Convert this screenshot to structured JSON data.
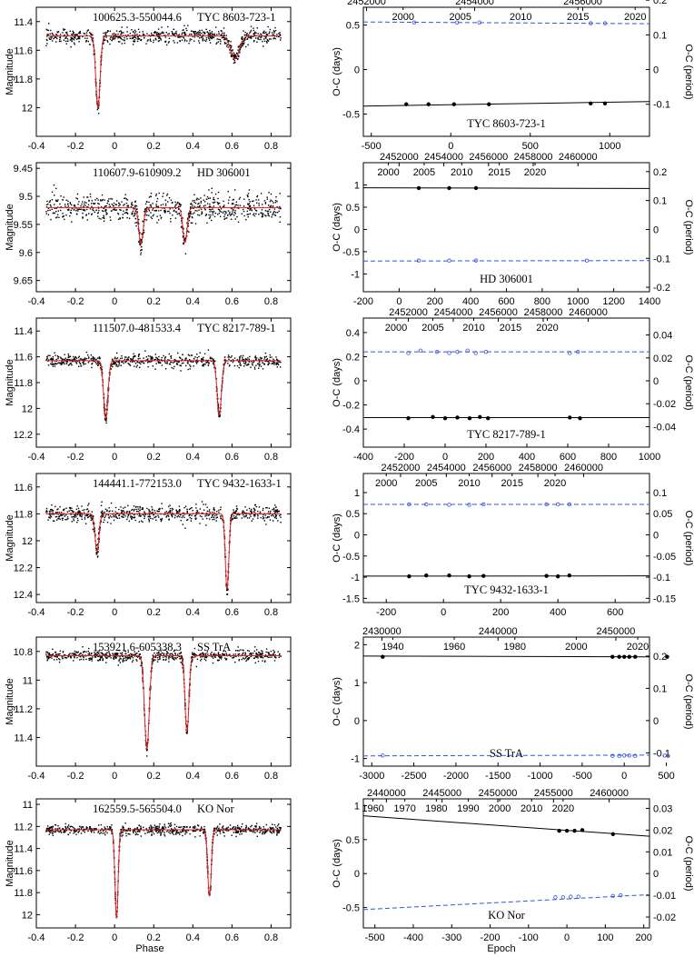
{
  "figure": {
    "left_xlabel": "Phase",
    "right_xlabel": "Epoch",
    "left_ylabel": "Magnitude",
    "right_ylabel_left": "O-C (days)",
    "right_ylabel_right": "O-C (period)"
  },
  "chart_data": [
    {
      "id": "lc1",
      "type": "scatter",
      "title_left": "100625.3-550044.6",
      "title_right": "TYC 8603-723-1",
      "xlim": [
        -0.4,
        0.9
      ],
      "xticks": [
        -0.4,
        -0.2,
        0,
        0.2,
        0.4,
        0.6,
        0.8
      ],
      "ylim": [
        11.3,
        12.2
      ],
      "yticks": [
        11.4,
        11.6,
        11.8,
        12
      ],
      "ylabel": "Magnitude",
      "base": 11.5,
      "noise": 0.025,
      "phase_range": [
        -0.35,
        0.85
      ],
      "eclipses": [
        {
          "phase": -0.085,
          "depth": 0.5,
          "width": 0.011
        },
        {
          "phase": 0.615,
          "depth": 0.16,
          "width": 0.022
        }
      ],
      "model_color": "#e02020",
      "point_color": "#000000"
    },
    {
      "id": "oc1",
      "type": "line",
      "title": "TYC 8603-723-1",
      "xlim": [
        -550,
        1250
      ],
      "xticks": [
        -500,
        0,
        500,
        1000
      ],
      "ylim": [
        -0.75,
        0.7
      ],
      "yticks": [
        -0.5,
        0,
        0.5
      ],
      "top_ticks": {
        "labels_row1": [
          "2452000",
          "2454000",
          "2456000",
          "2458000"
        ],
        "pos_row1": [
          -530,
          150,
          830,
          1510
        ],
        "labels_row2": [
          "2000",
          "2005",
          "2010",
          "2015",
          "2020"
        ],
        "pos_row2": [
          -300,
          60,
          440,
          800,
          1160
        ]
      },
      "right_ticks": {
        "labels": [
          "0.2",
          "0.1",
          "0",
          "-0.1"
        ],
        "pos": [
          0.78,
          0.39,
          0,
          -0.39
        ]
      },
      "primary": {
        "x": [
          -280,
          -140,
          20,
          240,
          880,
          970
        ],
        "y": [
          -0.39,
          -0.39,
          -0.39,
          -0.39,
          -0.38,
          -0.38
        ],
        "fit": [
          [
            -550,
            -0.41
          ],
          [
            1250,
            -0.36
          ]
        ]
      },
      "secondary": {
        "x": [
          -230,
          40,
          180,
          880,
          970
        ],
        "y": [
          0.53,
          0.53,
          0.53,
          0.52,
          0.52
        ],
        "fit": [
          [
            -550,
            0.535
          ],
          [
            1250,
            0.515
          ]
        ]
      }
    },
    {
      "id": "lc2",
      "type": "scatter",
      "title_left": "110607.9-610909.2",
      "title_right": "HD 306001",
      "xlim": [
        -0.4,
        0.9
      ],
      "xticks": [
        -0.4,
        -0.2,
        0,
        0.2,
        0.4,
        0.6,
        0.8
      ],
      "ylim": [
        9.44,
        9.67
      ],
      "yticks": [
        9.45,
        9.5,
        9.55,
        9.6,
        9.65
      ],
      "ylabel": "Magnitude",
      "base": 9.52,
      "noise": 0.012,
      "phase_range": [
        -0.35,
        0.85
      ],
      "eclipses": [
        {
          "phase": 0.135,
          "depth": 0.065,
          "width": 0.011
        },
        {
          "phase": 0.36,
          "depth": 0.062,
          "width": 0.011
        }
      ],
      "model_color": "#e02020",
      "point_color": "#000000"
    },
    {
      "id": "oc2",
      "type": "line",
      "title": "HD 306001",
      "xlim": [
        -200,
        1400
      ],
      "xticks": [
        -200,
        0,
        200,
        400,
        600,
        800,
        1000,
        1200,
        1400
      ],
      "ylim": [
        -1.4,
        1.5
      ],
      "yticks": [
        -1,
        -0.5,
        0,
        0.5,
        1
      ],
      "top_ticks": {
        "labels_row1": [
          "2452000",
          "2454000",
          "2456000",
          "2458000",
          "2460000"
        ],
        "pos_row1": [
          0,
          250,
          500,
          750,
          1000
        ],
        "labels_row2": [
          "2000",
          "2005",
          "2010",
          "2015",
          "2020"
        ],
        "pos_row2": [
          -60,
          140,
          350,
          560,
          760
        ]
      },
      "right_ticks": {
        "labels": [
          "0.2",
          "0.1",
          "0",
          "-0.1",
          "-0.2"
        ],
        "pos": [
          1.3,
          0.65,
          0,
          -0.65,
          -1.3
        ]
      },
      "primary": {
        "x": [
          110,
          280,
          430
        ],
        "y": [
          0.93,
          0.93,
          0.93
        ],
        "fit": [
          [
            -200,
            0.935
          ],
          [
            1400,
            0.92
          ]
        ]
      },
      "secondary": {
        "x": [
          110,
          280,
          430,
          1050
        ],
        "y": [
          -0.7,
          -0.7,
          -0.7,
          -0.7
        ],
        "fit": [
          [
            -200,
            -0.71
          ],
          [
            1400,
            -0.7
          ]
        ]
      }
    },
    {
      "id": "lc3",
      "type": "scatter",
      "title_left": "111507.0-481533.4",
      "title_right": "TYC 8217-789-1",
      "xlim": [
        -0.4,
        0.9
      ],
      "xticks": [
        -0.4,
        -0.2,
        0,
        0.2,
        0.4,
        0.6,
        0.8
      ],
      "ylim": [
        11.3,
        12.3
      ],
      "yticks": [
        11.4,
        11.6,
        11.8,
        12,
        12.2
      ],
      "ylabel": "Magnitude",
      "base": 11.63,
      "noise": 0.025,
      "phase_range": [
        -0.35,
        0.85
      ],
      "eclipses": [
        {
          "phase": -0.045,
          "depth": 0.45,
          "width": 0.011
        },
        {
          "phase": 0.535,
          "depth": 0.42,
          "width": 0.011
        }
      ],
      "model_color": "#e02020",
      "point_color": "#000000"
    },
    {
      "id": "oc3",
      "type": "line",
      "title": "TYC 8217-789-1",
      "xlim": [
        -400,
        1000
      ],
      "xticks": [
        -400,
        -200,
        0,
        200,
        400,
        600,
        800,
        1000
      ],
      "ylim": [
        -0.55,
        0.52
      ],
      "yticks": [
        -0.4,
        -0.2,
        0,
        0.2,
        0.4
      ],
      "top_ticks": {
        "labels_row1": [
          "2452000",
          "2454000",
          "2456000",
          "2458000",
          "2460000"
        ],
        "pos_row1": [
          -180,
          40,
          260,
          480,
          700
        ],
        "labels_row2": [
          "2000",
          "2005",
          "2010",
          "2015",
          "2020"
        ],
        "pos_row2": [
          -240,
          -60,
          140,
          320,
          500
        ]
      },
      "right_ticks": {
        "labels": [
          "0.04",
          "0.02",
          "0",
          "-0.02",
          "-0.04"
        ],
        "pos": [
          0.38,
          0.19,
          0,
          -0.19,
          -0.38
        ]
      },
      "primary": {
        "x": [
          -180,
          -60,
          0,
          60,
          120,
          170,
          210,
          610,
          660
        ],
        "y": [
          -0.31,
          -0.3,
          -0.31,
          -0.305,
          -0.31,
          -0.3,
          -0.31,
          -0.305,
          -0.31
        ],
        "fit": [
          [
            -400,
            -0.305
          ],
          [
            1000,
            -0.305
          ]
        ]
      },
      "secondary": {
        "x": [
          -180,
          -120,
          -40,
          20,
          60,
          110,
          150,
          200,
          610,
          650
        ],
        "y": [
          0.23,
          0.25,
          0.24,
          0.23,
          0.24,
          0.25,
          0.23,
          0.24,
          0.23,
          0.24
        ],
        "fit": [
          [
            -400,
            0.24
          ],
          [
            1000,
            0.24
          ]
        ]
      }
    },
    {
      "id": "lc4",
      "type": "scatter",
      "title_left": "144441.1-772153.0",
      "title_right": "TYC 9432-1633-1",
      "xlim": [
        -0.4,
        0.9
      ],
      "xticks": [
        -0.4,
        -0.2,
        0,
        0.2,
        0.4,
        0.6,
        0.8
      ],
      "ylim": [
        11.5,
        12.46
      ],
      "yticks": [
        11.6,
        11.8,
        12,
        12.2,
        12.4
      ],
      "ylabel": "Magnitude",
      "base": 11.8,
      "noise": 0.03,
      "phase_range": [
        -0.35,
        0.85
      ],
      "eclipses": [
        {
          "phase": -0.09,
          "depth": 0.28,
          "width": 0.01
        },
        {
          "phase": 0.575,
          "depth": 0.56,
          "width": 0.009
        }
      ],
      "model_color": "#e02020",
      "point_color": "#000000"
    },
    {
      "id": "oc4",
      "type": "line",
      "title": "TYC 9432-1633-1",
      "xlim": [
        -280,
        720
      ],
      "xticks": [
        -200,
        0,
        200,
        400,
        600
      ],
      "ylim": [
        -1.6,
        1.45
      ],
      "yticks": [
        -1.5,
        -1,
        -0.5,
        0,
        0.5,
        1
      ],
      "top_ticks": {
        "labels_row1": [
          "2452000",
          "2454000",
          "2456000",
          "2458000",
          "2460000"
        ],
        "pos_row1": [
          -150,
          10,
          170,
          330,
          490
        ],
        "labels_row2": [
          "2000",
          "2005",
          "2010",
          "2015",
          "2020"
        ],
        "pos_row2": [
          -200,
          -60,
          90,
          240,
          390
        ]
      },
      "right_ticks": {
        "labels": [
          "0.1",
          "0.05",
          "0",
          "-0.05",
          "-0.1",
          "-0.15"
        ],
        "pos": [
          1.0,
          0.5,
          0,
          -0.5,
          -1.0,
          -1.5
        ]
      },
      "primary": {
        "x": [
          -120,
          -60,
          20,
          90,
          140,
          360,
          400,
          440
        ],
        "y": [
          -0.98,
          -0.96,
          -0.96,
          -0.98,
          -0.97,
          -0.97,
          -0.98,
          -0.96
        ],
        "fit": [
          [
            -280,
            -0.975
          ],
          [
            720,
            -0.97
          ]
        ]
      },
      "secondary": {
        "x": [
          -120,
          -60,
          20,
          90,
          140,
          360,
          400,
          440
        ],
        "y": [
          0.72,
          0.72,
          0.71,
          0.71,
          0.72,
          0.72,
          0.72,
          0.72
        ],
        "fit": [
          [
            -280,
            0.72
          ],
          [
            720,
            0.72
          ]
        ]
      }
    },
    {
      "id": "lc5",
      "type": "scatter",
      "title_left": "153921.6-605338.3",
      "title_right": "SS TrA",
      "xlim": [
        -0.4,
        0.9
      ],
      "xticks": [
        -0.4,
        -0.2,
        0,
        0.2,
        0.4,
        0.6,
        0.8
      ],
      "ylim": [
        10.7,
        11.6
      ],
      "yticks": [
        10.8,
        11,
        11.2,
        11.4
      ],
      "ylabel": "Magnitude",
      "base": 10.83,
      "noise": 0.02,
      "phase_range": [
        -0.35,
        0.85
      ],
      "eclipses": [
        {
          "phase": 0.165,
          "depth": 0.65,
          "width": 0.012
        },
        {
          "phase": 0.37,
          "depth": 0.53,
          "width": 0.01
        }
      ],
      "model_color": "#e02020",
      "point_color": "#000000"
    },
    {
      "id": "oc5",
      "type": "line",
      "title": "SS TrA",
      "xlim": [
        -3100,
        300
      ],
      "xticks": [
        -3000,
        -2500,
        -2000,
        -1500,
        -1000,
        -500,
        0,
        500
      ],
      "ylim": [
        -1.2,
        2.2
      ],
      "yticks": [
        -1,
        0,
        1,
        2
      ],
      "top_ticks": {
        "labels_row1": [
          "2430000",
          "2440000",
          "2450000",
          "2460000"
        ],
        "pos_row1": [
          -2880,
          -1500,
          -100,
          1300
        ],
        "labels_row2": [
          "1940",
          "1960",
          "1980",
          "2000",
          "2020"
        ],
        "pos_row2": [
          -2750,
          -2020,
          -1300,
          -570,
          160
        ]
      },
      "right_ticks": {
        "labels": [
          "0.2",
          "0.1",
          "0",
          "-0.1"
        ],
        "pos": [
          1.7,
          0.85,
          0,
          -0.85
        ]
      },
      "primary": {
        "x": [
          -2870,
          -140,
          -60,
          0,
          60,
          130,
          510
        ],
        "y": [
          1.68,
          1.68,
          1.68,
          1.68,
          1.68,
          1.68,
          1.68
        ],
        "fit": [
          [
            -3100,
            1.7
          ],
          [
            300,
            1.68
          ]
        ]
      },
      "secondary": {
        "x": [
          -2870,
          -140,
          -60,
          0,
          60,
          130,
          480,
          520
        ],
        "y": [
          -0.92,
          -0.93,
          -0.93,
          -0.92,
          -0.92,
          -0.93,
          -0.92,
          -0.93
        ],
        "fit": [
          [
            -3100,
            -0.93
          ],
          [
            300,
            -0.91
          ]
        ]
      }
    },
    {
      "id": "lc6",
      "type": "scatter",
      "title_left": "162559.5-565504.0",
      "title_right": "KO Nor",
      "xlim": [
        -0.4,
        0.9
      ],
      "xticks": [
        -0.4,
        -0.2,
        0,
        0.2,
        0.4,
        0.6,
        0.8
      ],
      "ylim": [
        10.95,
        12.12
      ],
      "yticks": [
        11,
        11.2,
        11.4,
        11.6,
        11.8,
        12
      ],
      "ylabel": "Magnitude",
      "base": 11.23,
      "noise": 0.022,
      "phase_range": [
        -0.35,
        0.85
      ],
      "eclipses": [
        {
          "phase": 0.01,
          "depth": 0.8,
          "width": 0.008
        },
        {
          "phase": 0.485,
          "depth": 0.6,
          "width": 0.009
        }
      ],
      "model_color": "#e02020",
      "point_color": "#000000"
    },
    {
      "id": "oc6",
      "type": "line",
      "title": "KO Nor",
      "xlim": [
        -530,
        215
      ],
      "xticks": [
        -500,
        -400,
        -300,
        -200,
        -100,
        0,
        100,
        200
      ],
      "ylim": [
        -0.8,
        1.1
      ],
      "yticks": [
        -0.5,
        0,
        0.5,
        1
      ],
      "top_ticks": {
        "labels_row1": [
          "2440000",
          "2445000",
          "2450000",
          "2455000",
          "2460000"
        ],
        "pos_row1": [
          -470,
          -325,
          -180,
          -35,
          110
        ],
        "labels_row2": [
          "1960",
          "1970",
          "1980",
          "1990",
          "2000",
          "2010",
          "2020"
        ],
        "pos_row2": [
          -505,
          -422,
          -340,
          -257,
          -175,
          -92,
          -10
        ]
      },
      "right_ticks": {
        "labels": [
          "0.03",
          "0.02",
          "0.01",
          "0",
          "-0.01",
          "-0.02"
        ],
        "pos": [
          0.96,
          0.64,
          0.32,
          0,
          -0.32,
          -0.64
        ]
      },
      "primary": {
        "x": [
          -20,
          0,
          20,
          40,
          120
        ],
        "y": [
          0.63,
          0.63,
          0.63,
          0.64,
          0.58
        ],
        "fit": [
          [
            -530,
            0.85
          ],
          [
            215,
            0.55
          ]
        ]
      },
      "secondary": {
        "x": [
          -30,
          -10,
          10,
          30,
          120,
          140
        ],
        "y": [
          -0.35,
          -0.35,
          -0.34,
          -0.34,
          -0.33,
          -0.32
        ],
        "fit": [
          [
            -530,
            -0.53
          ],
          [
            215,
            -0.31
          ]
        ]
      }
    }
  ]
}
